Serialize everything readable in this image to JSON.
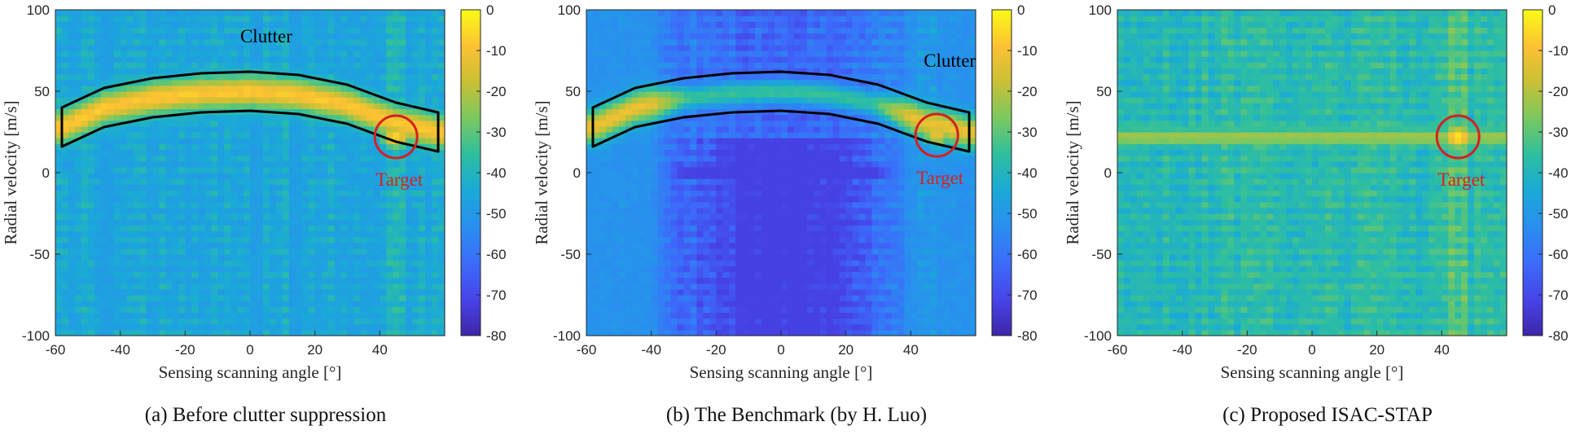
{
  "colormap": [
    "#3e26a8",
    "#4744e8",
    "#3c6bfa",
    "#2a8ef0",
    "#1aa9d8",
    "#2ebf9f",
    "#7ac860",
    "#c9c035",
    "#fdc133",
    "#f9fb15"
  ],
  "annotation_colors": {
    "clutter_outline": "#000000",
    "target_circle": "#d62020",
    "target_text": "#d62020"
  },
  "chart_data": [
    {
      "type": "heatmap",
      "caption": "(a) Before clutter suppression",
      "xlabel": "Sensing scanning angle [°]",
      "ylabel": "Radial velocity [m/s]",
      "xlim": [
        -60,
        60
      ],
      "ylim": [
        -100,
        100
      ],
      "xticks": [
        -60,
        -40,
        -20,
        0,
        20,
        40
      ],
      "yticks": [
        100,
        50,
        0,
        -50,
        -100
      ],
      "colorbar": {
        "min": -80,
        "max": 0,
        "ticks": [
          0,
          -10,
          -20,
          -30,
          -40,
          -50,
          -60,
          -70,
          -80
        ]
      },
      "background_level_db": -45,
      "clutter": {
        "ridge": [
          [
            -58,
            28
          ],
          [
            -45,
            40
          ],
          [
            -30,
            46
          ],
          [
            -15,
            49
          ],
          [
            0,
            50
          ],
          [
            15,
            48
          ],
          [
            30,
            42
          ],
          [
            45,
            31
          ],
          [
            58,
            25
          ]
        ],
        "peak_db": -8,
        "label": "Clutter",
        "label_at": [
          5,
          80
        ]
      },
      "target": {
        "angle": 45,
        "velocity": 22,
        "peak_db": -5,
        "label": "Target"
      },
      "vertical_stripe_angles": [
        -44,
        2,
        14,
        45
      ]
    },
    {
      "type": "heatmap",
      "caption": "(b) The Benchmark (by H. Luo)",
      "xlabel": "Sensing scanning angle [°]",
      "ylabel": "Radial velocity [m/s]",
      "xlim": [
        -60,
        60
      ],
      "ylim": [
        -100,
        100
      ],
      "xticks": [
        -60,
        -40,
        -20,
        0,
        20,
        40
      ],
      "yticks": [
        100,
        50,
        0,
        -50,
        -100
      ],
      "colorbar": {
        "min": -80,
        "max": 0,
        "ticks": [
          0,
          -10,
          -20,
          -30,
          -40,
          -50,
          -60,
          -70,
          -80
        ]
      },
      "background_level_db": -55,
      "clutter": {
        "ridge": [
          [
            -58,
            28
          ],
          [
            -45,
            40
          ],
          [
            -30,
            46
          ],
          [
            -15,
            49
          ],
          [
            0,
            50
          ],
          [
            15,
            48
          ],
          [
            30,
            42
          ],
          [
            45,
            31
          ],
          [
            58,
            25
          ]
        ],
        "peak_db": -12,
        "label": "Clutter",
        "label_at": [
          52,
          65
        ]
      },
      "target": {
        "angle": 48,
        "velocity": 23,
        "peak_db": -12,
        "label": "Target"
      },
      "notch_velocity": 0,
      "vertical_stripe_angles": [
        -44,
        45
      ]
    },
    {
      "type": "heatmap",
      "caption": "(c) Proposed ISAC-STAP",
      "xlabel": "Sensing scanning angle [°]",
      "ylabel": "Radial velocity [m/s]",
      "xlim": [
        -60,
        60
      ],
      "ylim": [
        -100,
        100
      ],
      "xticks": [
        -60,
        -40,
        -20,
        0,
        20,
        40
      ],
      "yticks": [
        100,
        50,
        0,
        -50,
        -100
      ],
      "colorbar": {
        "min": -80,
        "max": 0,
        "ticks": [
          0,
          -10,
          -20,
          -30,
          -40,
          -50,
          -60,
          -70,
          -80
        ]
      },
      "background_level_db": -38,
      "clutter": null,
      "horizontal_band": {
        "velocity": 22,
        "peak_db": -22
      },
      "target": {
        "angle": 45,
        "velocity": 22,
        "peak_db": -2,
        "label": "Target"
      },
      "vertical_stripe_angles": [
        45
      ]
    }
  ]
}
